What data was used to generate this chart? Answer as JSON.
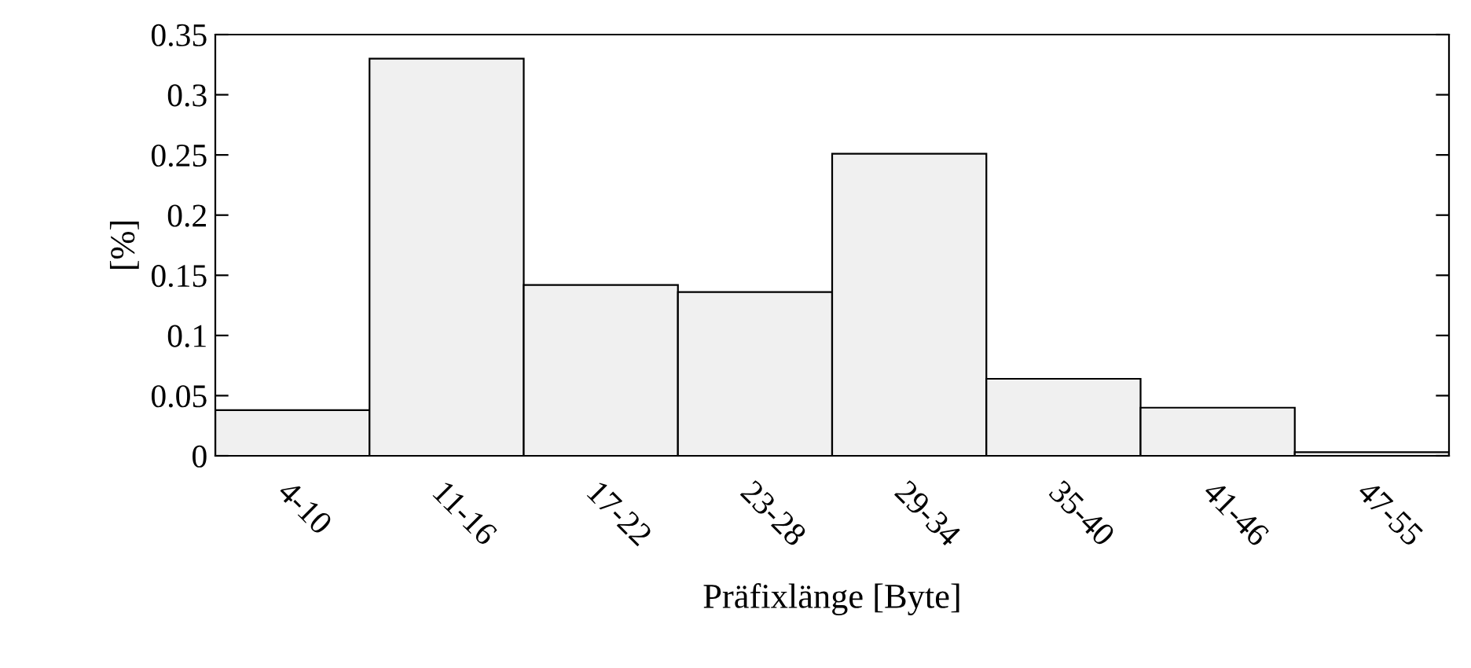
{
  "chart_data": {
    "type": "bar",
    "xlabel": "Präfixlänge [Byte]",
    "ylabel": "[%]",
    "categories": [
      "4-10",
      "11-16",
      "17-22",
      "23-28",
      "29-34",
      "35-40",
      "41-46",
      "47-55"
    ],
    "values": [
      0.038,
      0.33,
      0.142,
      0.136,
      0.251,
      0.064,
      0.04,
      0.003
    ],
    "color": "#f0f0f0",
    "ylim": [
      0,
      0.35
    ],
    "yticks": [
      0,
      0.05,
      0.1,
      0.15,
      0.2,
      0.25,
      0.3,
      0.35
    ],
    "grid": false,
    "legend": false
  }
}
